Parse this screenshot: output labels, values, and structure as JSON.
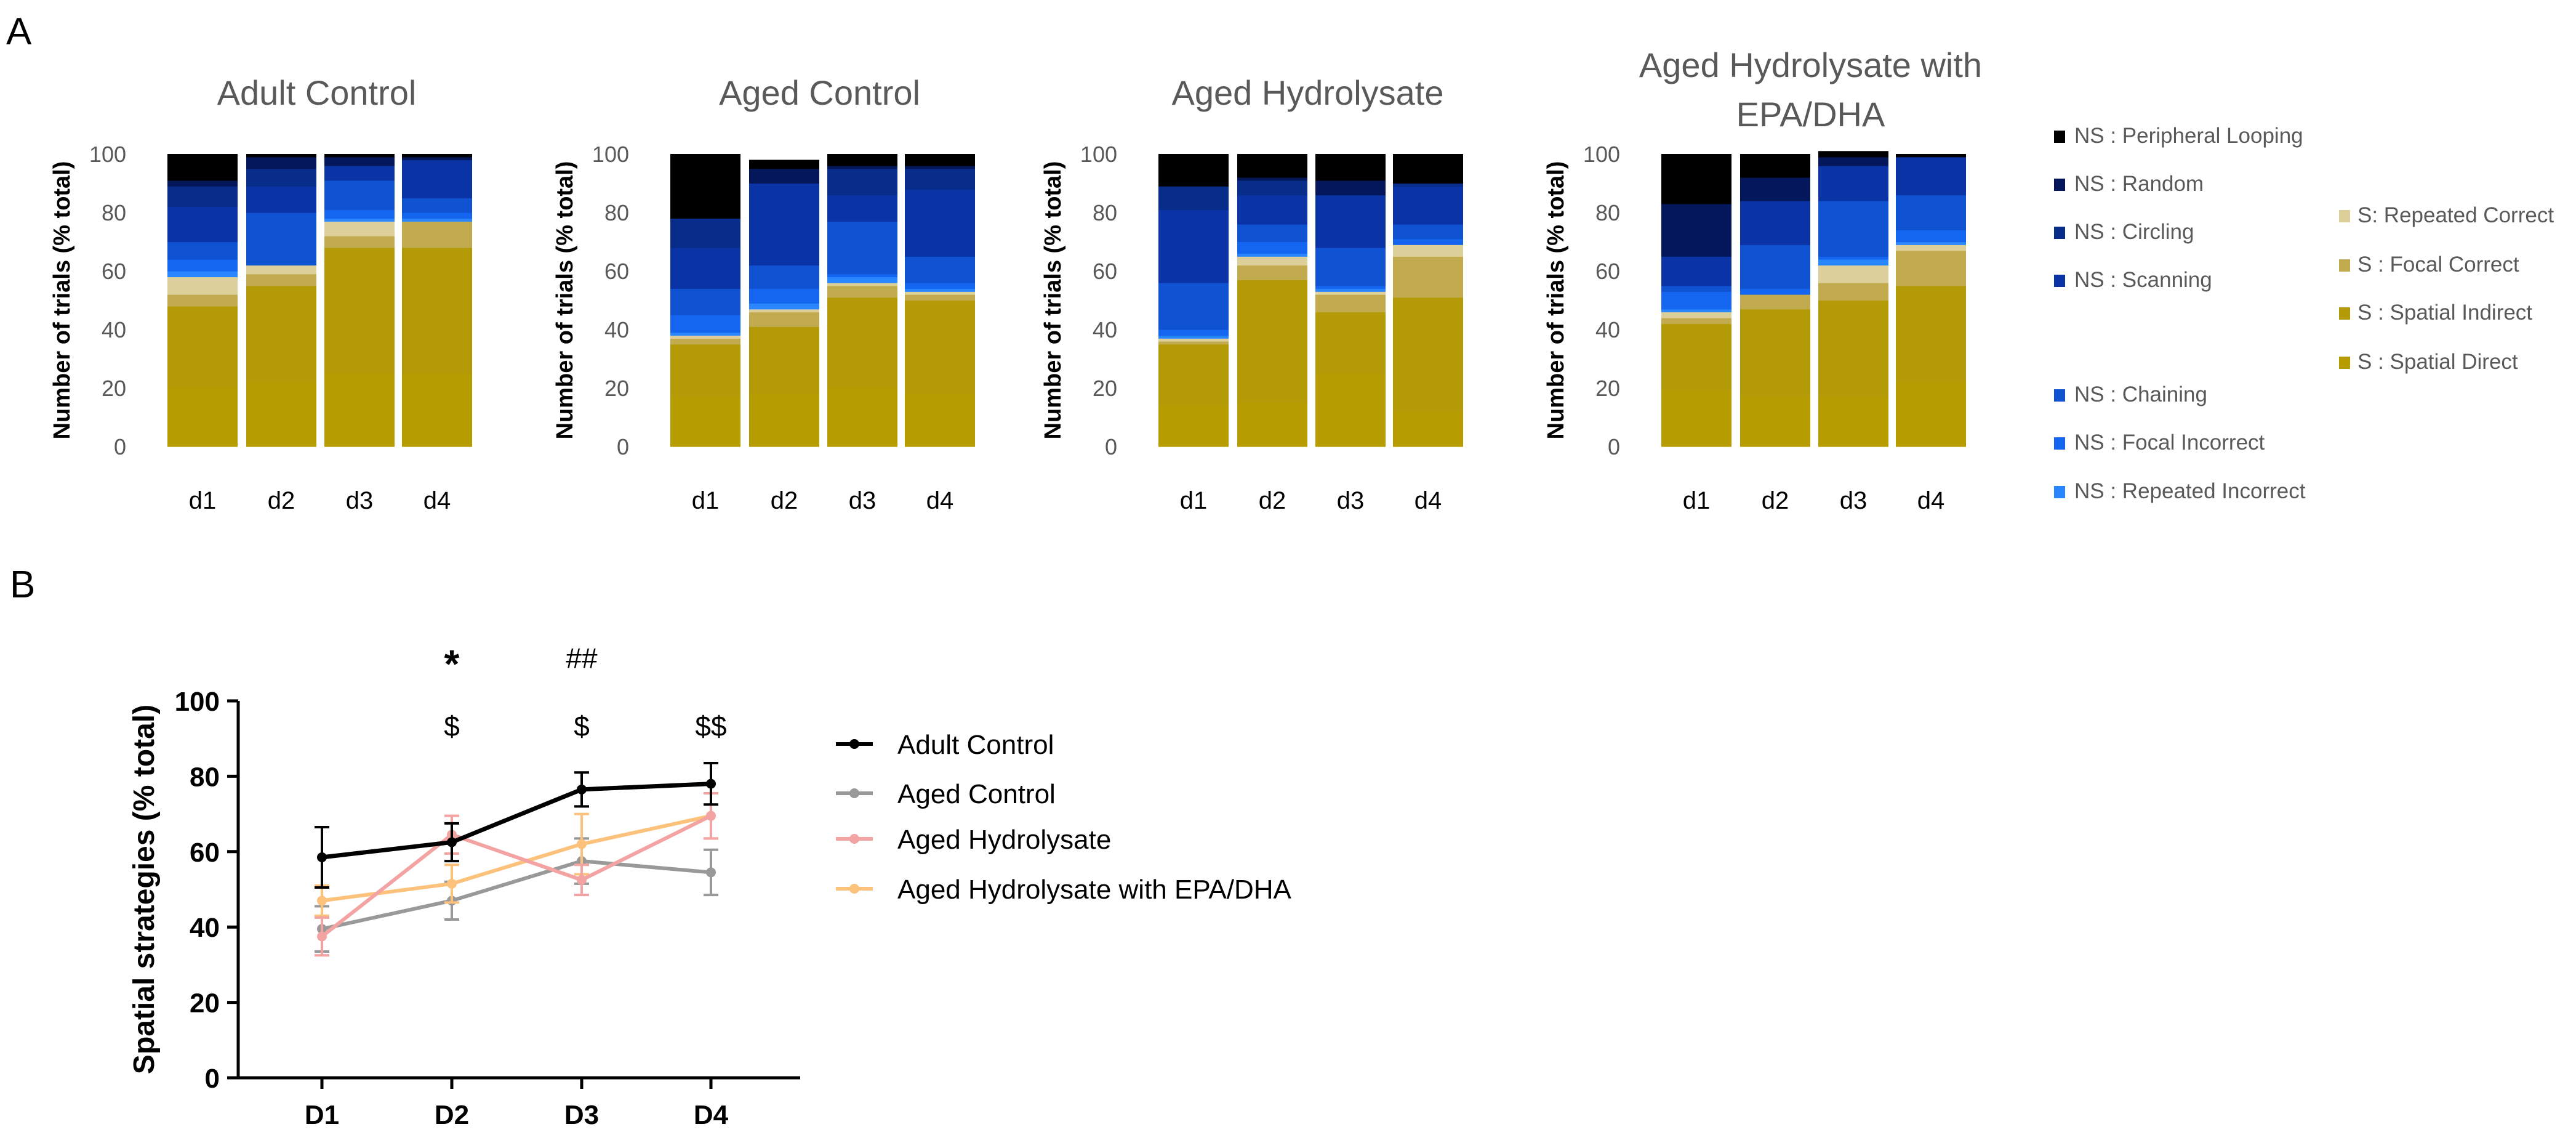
{
  "panel_labels": {
    "a": "A",
    "b": "B"
  },
  "colors": {
    "NS : Peripheral Looping": "#000000",
    "NS : Random": "#04175a",
    "NS : Circling": "#082c8a",
    "NS : Scanning": "#0a33a6",
    "NS : Chaining": "#0f52d2",
    "NS : Focal Incorrect": "#1466f0",
    "NS : Repeated Incorrect": "#2a86ff",
    "S: Repeated Correct": "#dccf9a",
    "S : Focal Correct": "#c2aa4f",
    "S : Spatial Indirect": "#b49a06",
    "S : Spatial Direct": "#b79c00",
    "Adult Control": "#000000",
    "Aged Control": "#999999",
    "Aged Hydrolysate": "#f4a3a3",
    "Aged Hydrolysate with EPA/DHA": "#fcc27c"
  },
  "chart_data": [
    {
      "type": "bar",
      "stacked": true,
      "title": "Adult Control",
      "ylabel": "Number of trials (% total)",
      "ylim": [
        0,
        100
      ],
      "yticks": [
        0,
        20,
        40,
        60,
        80,
        100
      ],
      "categories": [
        "d1",
        "d2",
        "d3",
        "d4"
      ],
      "series": [
        {
          "name": "S : Spatial Direct",
          "values": [
            20,
            22,
            25,
            25
          ]
        },
        {
          "name": "S : Spatial Indirect",
          "values": [
            28,
            33,
            43,
            43
          ]
        },
        {
          "name": "S : Focal Correct",
          "values": [
            4,
            4,
            4,
            9
          ]
        },
        {
          "name": "S: Repeated Correct",
          "values": [
            6,
            3,
            5,
            0
          ]
        },
        {
          "name": "NS : Repeated Incorrect",
          "values": [
            2,
            0,
            1,
            1
          ]
        },
        {
          "name": "NS : Focal Incorrect",
          "values": [
            4,
            0,
            3,
            2
          ]
        },
        {
          "name": "NS : Chaining",
          "values": [
            6,
            18,
            10,
            5
          ]
        },
        {
          "name": "NS : Scanning",
          "values": [
            12,
            9,
            5,
            13
          ]
        },
        {
          "name": "NS : Circling",
          "values": [
            7,
            6,
            0,
            0
          ]
        },
        {
          "name": "NS : Random",
          "values": [
            2,
            4,
            3,
            1
          ]
        },
        {
          "name": "NS : Peripheral Looping",
          "values": [
            9,
            1,
            1,
            1
          ]
        }
      ]
    },
    {
      "type": "bar",
      "stacked": true,
      "title": "Aged Control",
      "ylabel": "Number of trials (% total)",
      "ylim": [
        0,
        100
      ],
      "yticks": [
        0,
        20,
        40,
        60,
        80,
        100
      ],
      "categories": [
        "d1",
        "d2",
        "d3",
        "d4"
      ],
      "series": [
        {
          "name": "S : Spatial Direct",
          "values": [
            17,
            18,
            20,
            18
          ]
        },
        {
          "name": "S : Spatial Indirect",
          "values": [
            18,
            23,
            31,
            32
          ]
        },
        {
          "name": "S : Focal Correct",
          "values": [
            2,
            5,
            4,
            2
          ]
        },
        {
          "name": "S: Repeated Correct",
          "values": [
            1,
            1,
            1,
            1
          ]
        },
        {
          "name": "NS : Repeated Incorrect",
          "values": [
            1,
            2,
            2,
            1
          ]
        },
        {
          "name": "NS : Focal Incorrect",
          "values": [
            6,
            5,
            1,
            2
          ]
        },
        {
          "name": "NS : Chaining",
          "values": [
            9,
            8,
            18,
            9
          ]
        },
        {
          "name": "NS : Scanning",
          "values": [
            14,
            28,
            9,
            23
          ]
        },
        {
          "name": "NS : Circling",
          "values": [
            10,
            0,
            9,
            7
          ]
        },
        {
          "name": "NS : Random",
          "values": [
            0,
            5,
            1,
            1
          ]
        },
        {
          "name": "NS : Peripheral Looping",
          "values": [
            22,
            3,
            4,
            4
          ]
        }
      ]
    },
    {
      "type": "bar",
      "stacked": true,
      "title": "Aged Hydrolysate",
      "ylabel": "Number of trials (% total)",
      "ylim": [
        0,
        100
      ],
      "yticks": [
        0,
        20,
        40,
        60,
        80,
        100
      ],
      "categories": [
        "d1",
        "d2",
        "d3",
        "d4"
      ],
      "series": [
        {
          "name": "S : Spatial Direct",
          "values": [
            14,
            15,
            25,
            12
          ]
        },
        {
          "name": "S : Spatial Indirect",
          "values": [
            21,
            42,
            21,
            39
          ]
        },
        {
          "name": "S : Focal Correct",
          "values": [
            1,
            5,
            6,
            14
          ]
        },
        {
          "name": "S: Repeated Correct",
          "values": [
            1,
            3,
            1,
            4
          ]
        },
        {
          "name": "NS : Repeated Incorrect",
          "values": [
            1,
            1,
            1,
            0
          ]
        },
        {
          "name": "NS : Focal Incorrect",
          "values": [
            2,
            4,
            1,
            2
          ]
        },
        {
          "name": "NS : Chaining",
          "values": [
            16,
            6,
            13,
            5
          ]
        },
        {
          "name": "NS : Scanning",
          "values": [
            25,
            10,
            18,
            13
          ]
        },
        {
          "name": "NS : Circling",
          "values": [
            8,
            5,
            0,
            1
          ]
        },
        {
          "name": "NS : Random",
          "values": [
            0,
            1,
            5,
            0
          ]
        },
        {
          "name": "NS : Peripheral Looping",
          "values": [
            11,
            8,
            9,
            10
          ]
        }
      ]
    },
    {
      "type": "bar",
      "stacked": true,
      "title": "Aged Hydrolysate with EPA/DHA",
      "ylabel": "Number of trials (% total)",
      "ylim": [
        0,
        100
      ],
      "yticks": [
        0,
        20,
        40,
        60,
        80,
        100
      ],
      "categories": [
        "d1",
        "d2",
        "d3",
        "d4"
      ],
      "series": [
        {
          "name": "S : Spatial Direct",
          "values": [
            19,
            17,
            17,
            22
          ]
        },
        {
          "name": "S : Spatial Indirect",
          "values": [
            23,
            30,
            33,
            33
          ]
        },
        {
          "name": "S : Focal Correct",
          "values": [
            2,
            5,
            6,
            12
          ]
        },
        {
          "name": "S: Repeated Correct",
          "values": [
            2,
            0,
            6,
            2
          ]
        },
        {
          "name": "NS : Repeated Incorrect",
          "values": [
            1,
            0,
            2,
            1
          ]
        },
        {
          "name": "NS : Focal Incorrect",
          "values": [
            6,
            2,
            1,
            4
          ]
        },
        {
          "name": "NS : Chaining",
          "values": [
            2,
            15,
            19,
            12
          ]
        },
        {
          "name": "NS : Scanning",
          "values": [
            10,
            15,
            12,
            13
          ]
        },
        {
          "name": "NS : Circling",
          "values": [
            0,
            0,
            0,
            0
          ]
        },
        {
          "name": "NS : Random",
          "values": [
            18,
            8,
            3,
            0
          ]
        },
        {
          "name": "NS : Peripheral Looping",
          "values": [
            17,
            8,
            2,
            1
          ]
        }
      ]
    },
    {
      "type": "line",
      "title": "",
      "xlabel": "",
      "ylabel": "Spatial strategies (% total)",
      "ylim": [
        0,
        100
      ],
      "yticks": [
        0,
        20,
        40,
        60,
        80,
        100
      ],
      "categories": [
        "D1",
        "D2",
        "D3",
        "D4"
      ],
      "series": [
        {
          "name": "Adult Control",
          "values": [
            58.5,
            62.5,
            76.5,
            78
          ],
          "errors": [
            8,
            5,
            4.5,
            5.5
          ]
        },
        {
          "name": "Aged Control",
          "values": [
            39.5,
            47,
            57.5,
            54.5
          ],
          "errors": [
            6,
            5,
            6,
            6
          ]
        },
        {
          "name": "Aged Hydrolysate",
          "values": [
            37.5,
            64.5,
            52.5,
            69.5
          ],
          "errors": [
            5,
            5,
            4,
            6
          ]
        },
        {
          "name": "Aged Hydrolysate with EPA/DHA",
          "values": [
            47,
            51.5,
            62,
            69.5
          ],
          "errors": [
            4,
            5,
            8,
            6
          ]
        }
      ],
      "annotations": [
        {
          "category": "D2",
          "text": "*"
        },
        {
          "category": "D2",
          "text": "$"
        },
        {
          "category": "D3",
          "text": "##"
        },
        {
          "category": "D3",
          "text": "$"
        },
        {
          "category": "D4",
          "text": "$$"
        }
      ]
    }
  ],
  "legend_a": {
    "ns": [
      "NS : Peripheral Looping",
      "NS : Random",
      "NS : Circling",
      "NS : Scanning",
      "NS : Chaining",
      "NS : Focal Incorrect",
      "NS : Repeated Incorrect"
    ],
    "s": [
      "S: Repeated Correct",
      "S : Focal Correct",
      "S : Spatial Indirect",
      "S : Spatial Direct"
    ]
  },
  "legend_b": [
    "Adult Control",
    "Aged Control",
    "Aged Hydrolysate",
    "Aged Hydrolysate with EPA/DHA"
  ]
}
